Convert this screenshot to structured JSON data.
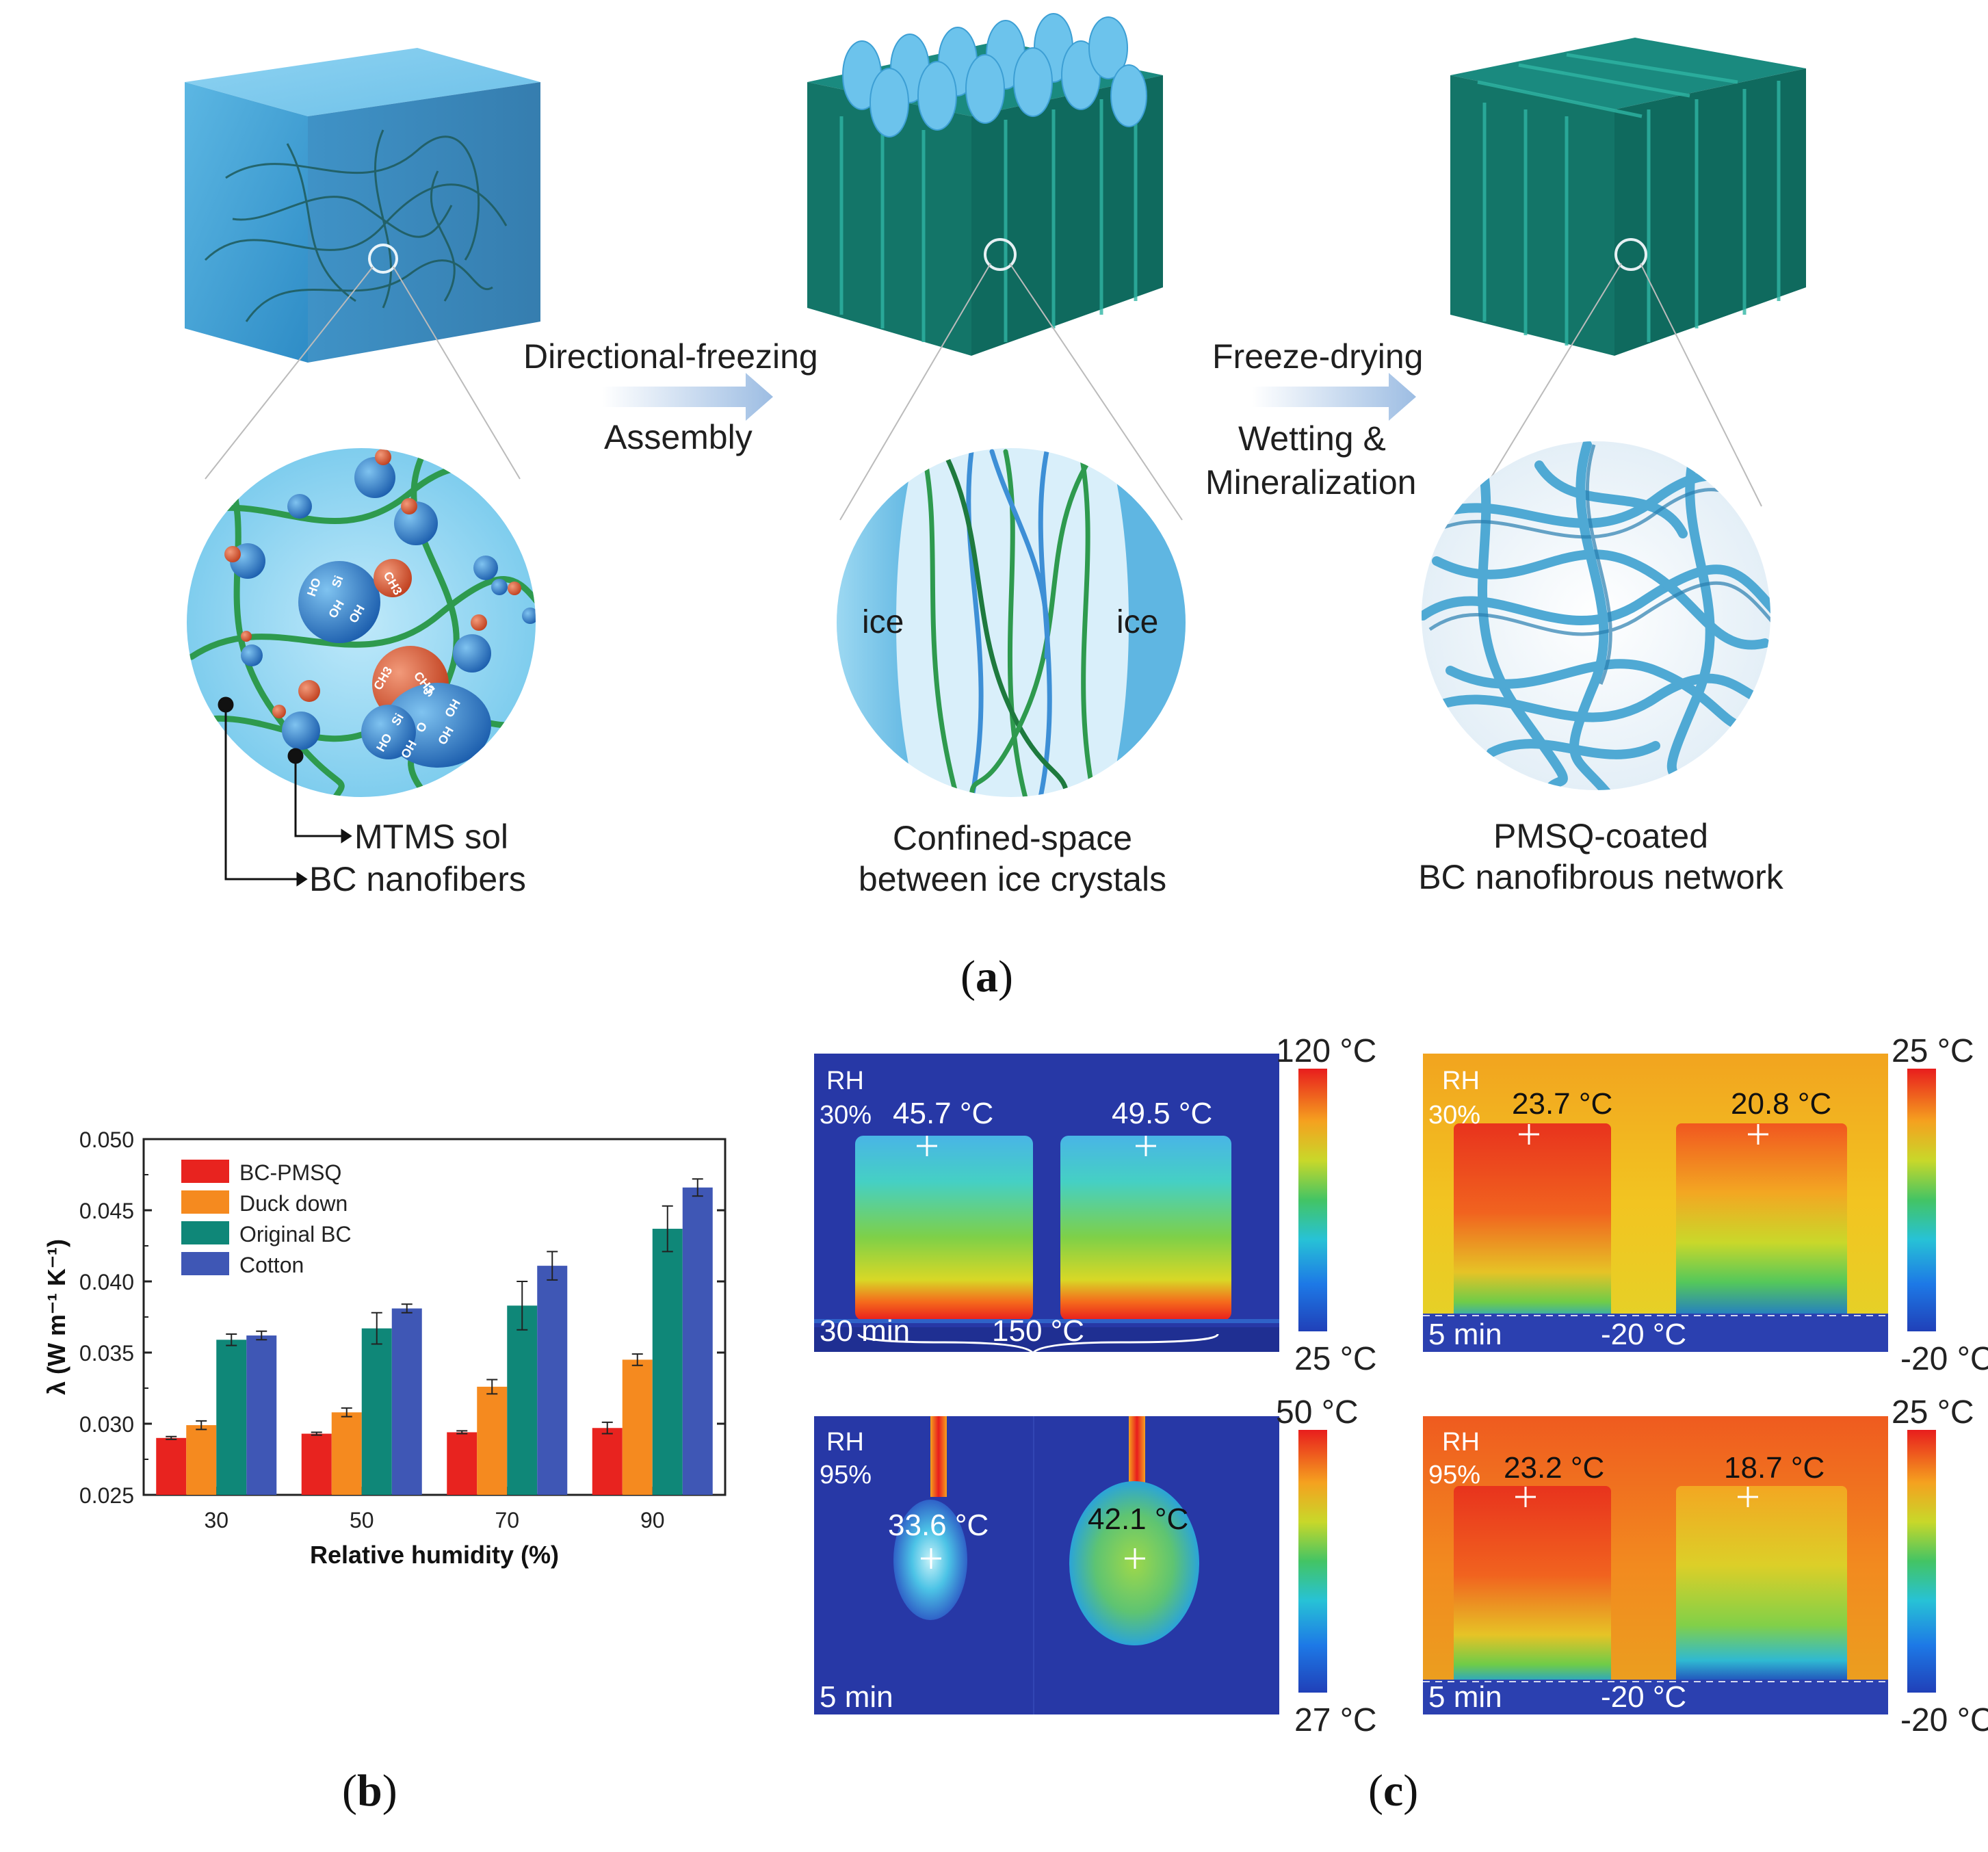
{
  "panel_a": {
    "letter_open": "(",
    "letter": "a",
    "letter_close": ")",
    "step1_top": "Directional-freezing",
    "step1_bottom": "Assembly",
    "step2_top": "Freeze-drying",
    "step2_bottom_1": "Wetting &",
    "step2_bottom_2": "Mineralization",
    "legend_sol": "MTMS sol",
    "legend_fibers": "BC nanofibers",
    "mid_caption_1": "Confined-space",
    "mid_caption_2": "between ice crystals",
    "right_caption_1": "PMSQ-coated",
    "right_caption_2": "BC nanofibrous network",
    "ice_left": "ice",
    "ice_right": "ice",
    "chem": {
      "ho1": "HO",
      "si1": "Si",
      "oh1": "OH",
      "oh2": "OH",
      "ch3a": "CH3",
      "ch3b": "CH3",
      "ch3c": "CH3",
      "si2": "Si",
      "si3": "Si",
      "o": "O",
      "oh3": "OH",
      "oh4": "OH",
      "ho2": "HO",
      "oh5": "OH"
    }
  },
  "panel_b": {
    "letter_open": "(",
    "letter": "b",
    "letter_close": ")"
  },
  "panel_c": {
    "letter_open": "(",
    "letter": "c",
    "letter_close": ")",
    "images": [
      {
        "rh": "RH",
        "rh_value": "30%",
        "temp_left": "45.7 °C",
        "temp_right": "49.5 °C",
        "time": "30 min",
        "condition": "150 °C",
        "scale_max": "120 °C",
        "scale_min": "25 °C"
      },
      {
        "rh": "RH",
        "rh_value": "30%",
        "temp_left": "23.7 °C",
        "temp_right": "20.8 °C",
        "time": "5 min",
        "condition": "-20 °C",
        "scale_max": "25 °C",
        "scale_min": "-20 °C"
      },
      {
        "rh": "RH",
        "rh_value": "95%",
        "temp_left": "33.6 °C",
        "temp_right": "42.1 °C",
        "time": "5 min",
        "condition": "",
        "scale_max": "50 °C",
        "scale_min": "27 °C"
      },
      {
        "rh": "RH",
        "rh_value": "95%",
        "temp_left": "23.2 °C",
        "temp_right": "18.7 °C",
        "time": "5 min",
        "condition": "-20 °C",
        "scale_max": "25 °C",
        "scale_min": "-20 °C"
      }
    ]
  },
  "colors": {
    "bc_pmsq": "#e8231f",
    "duck_down": "#f58a1f",
    "original_bc": "#0f8778",
    "cotton": "#3f57b5"
  },
  "chart_data": {
    "type": "bar",
    "categories": [
      "30",
      "50",
      "70",
      "90"
    ],
    "series": [
      {
        "name": "BC-PMSQ",
        "values": [
          0.029,
          0.0293,
          0.0294,
          0.0297
        ],
        "errors": [
          0.0001,
          0.0001,
          0.0001,
          0.0004
        ]
      },
      {
        "name": "Duck down",
        "values": [
          0.0299,
          0.0308,
          0.0326,
          0.0345
        ],
        "errors": [
          0.0003,
          0.0003,
          0.0005,
          0.0004
        ]
      },
      {
        "name": "Original BC",
        "values": [
          0.0359,
          0.0367,
          0.0383,
          0.0437
        ],
        "errors": [
          0.0004,
          0.0011,
          0.0017,
          0.0016
        ]
      },
      {
        "name": "Cotton",
        "values": [
          0.0362,
          0.0381,
          0.0411,
          0.0466
        ],
        "errors": [
          0.0003,
          0.0003,
          0.001,
          0.0006
        ]
      }
    ],
    "ylim": [
      0.025,
      0.05
    ],
    "yticks": [
      "0.025",
      "0.030",
      "0.035",
      "0.040",
      "0.045",
      "0.050"
    ],
    "xlabel": "Relative humidity (%)",
    "ylabel": "λ (W m⁻¹ K⁻¹)",
    "legend_position": "top-left",
    "grid": false
  }
}
